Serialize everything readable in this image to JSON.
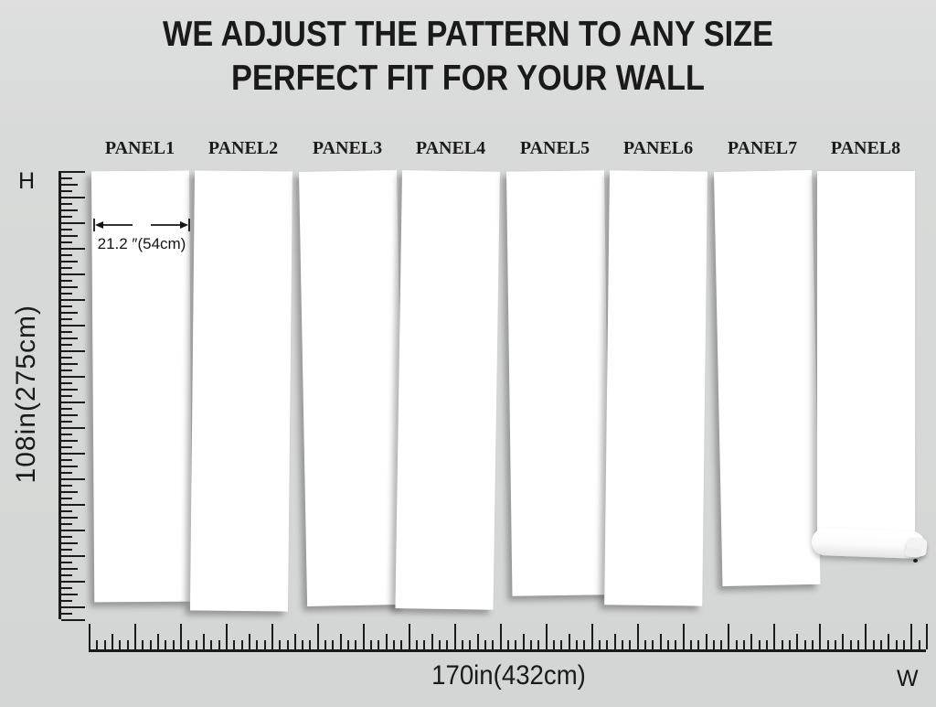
{
  "title": {
    "line1": "WE ADJUST THE PATTERN TO ANY SIZE",
    "line2": "PERFECT FIT FOR YOUR WALL"
  },
  "axes": {
    "height_letter": "H",
    "width_letter": "W",
    "height_dimension": "108in(275cm)",
    "width_dimension": "170in(432cm)"
  },
  "annotation": {
    "panel_width": "21.2 ″(54cm)"
  },
  "panels": [
    {
      "label": "PANEL1"
    },
    {
      "label": "PANEL2"
    },
    {
      "label": "PANEL3"
    },
    {
      "label": "PANEL4"
    },
    {
      "label": "PANEL5"
    },
    {
      "label": "PANEL6"
    },
    {
      "label": "PANEL7"
    },
    {
      "label": "PANEL8"
    }
  ],
  "colors": {
    "background": "#d7d9d8",
    "panel": "#ffffff",
    "ink": "#1b1b1b"
  }
}
